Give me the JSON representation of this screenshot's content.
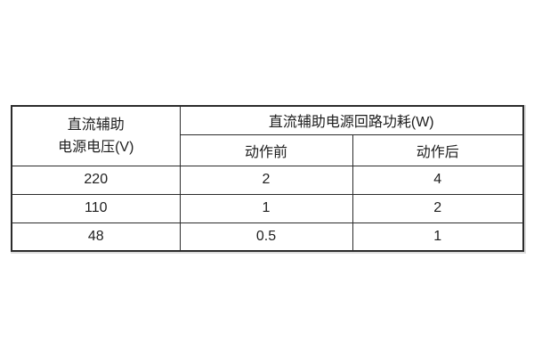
{
  "page": {
    "background_color": "#ffffff"
  },
  "table": {
    "voltage_header": {
      "line1": "直流辅助",
      "line2": "电源电压(V)"
    },
    "power_header": "直流辅助电源回路功耗(W)",
    "sub_headers": {
      "before": "动作前",
      "after": "动作后"
    },
    "rows": [
      {
        "voltage": "220",
        "before": "2",
        "after": "4"
      },
      {
        "voltage": "110",
        "before": "1",
        "after": "2"
      },
      {
        "voltage": "48",
        "before": "0.5",
        "after": "1"
      }
    ],
    "colors": {
      "border": "#2b2b2b",
      "text": "#1e1e1e",
      "background": "#ffffff"
    }
  }
}
